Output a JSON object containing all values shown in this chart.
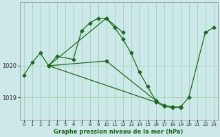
{
  "xlabel": "Graphe pression niveau de la mer (hPa)",
  "bg_color": "#cce8e8",
  "grid_color": "#99ccaa",
  "line_color": "#1a6b1a",
  "s1_x": [
    0,
    1,
    2,
    3,
    4,
    6,
    7,
    8,
    9,
    10,
    12
  ],
  "s1_y": [
    1019.7,
    1020.1,
    1020.4,
    1020.0,
    1020.3,
    1020.2,
    1021.1,
    1021.35,
    1021.5,
    1021.5,
    1021.05
  ],
  "s2_x": [
    3,
    10,
    11,
    12,
    13,
    14,
    15,
    16
  ],
  "s2_y": [
    1020.0,
    1021.5,
    1021.2,
    1020.85,
    1020.4,
    1019.8,
    1019.35,
    1018.9
  ],
  "s3_x": [
    3,
    10,
    16,
    17,
    18,
    19,
    20,
    22,
    23
  ],
  "s3_y": [
    1020.0,
    1020.15,
    1018.9,
    1018.75,
    1018.7,
    1018.7,
    1019.0,
    1021.05,
    1021.2
  ],
  "s4_x": [
    3,
    16,
    17,
    18,
    19
  ],
  "s4_y": [
    1020.0,
    1018.85,
    1018.72,
    1018.68,
    1018.68
  ],
  "ylim": [
    1018.3,
    1022.0
  ],
  "yticks": [
    1019,
    1020
  ],
  "ytick_labels": [
    "1019",
    "1020"
  ],
  "xticks": [
    0,
    1,
    2,
    3,
    4,
    5,
    6,
    7,
    8,
    9,
    10,
    11,
    12,
    13,
    14,
    15,
    16,
    17,
    18,
    19,
    20,
    21,
    22,
    23
  ]
}
